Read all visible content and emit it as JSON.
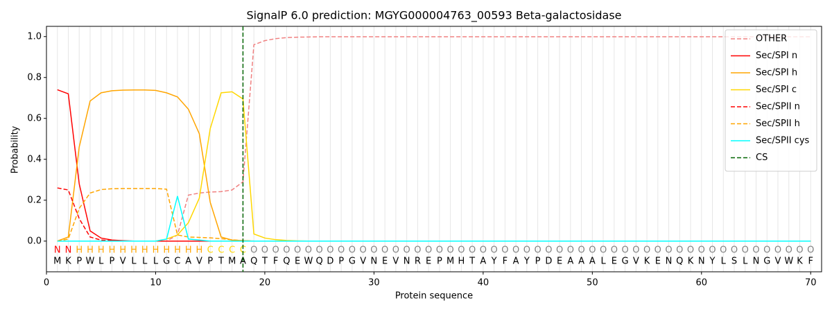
{
  "chart_data": {
    "type": "line",
    "title": "SignalP 6.0 prediction: MGYG000004763_00593 Beta-galactosidase",
    "x_label": "Protein sequence",
    "y_label": "Probability",
    "x": [
      1,
      2,
      3,
      4,
      5,
      6,
      7,
      8,
      9,
      10,
      11,
      12,
      13,
      14,
      15,
      16,
      17,
      18,
      19,
      20,
      21,
      22,
      23,
      24,
      25,
      26,
      27,
      28,
      29,
      30,
      31,
      32,
      33,
      34,
      35,
      36,
      37,
      38,
      39,
      40,
      41,
      42,
      43,
      44,
      45,
      46,
      47,
      48,
      49,
      50,
      51,
      52,
      53,
      54,
      55,
      56,
      57,
      58,
      59,
      60,
      61,
      62,
      63,
      64,
      65,
      66,
      67,
      68,
      69,
      70
    ],
    "sequence": [
      "M",
      "K",
      "P",
      "W",
      "L",
      "P",
      "V",
      "L",
      "L",
      "L",
      "G",
      "C",
      "A",
      "V",
      "P",
      "T",
      "M",
      "A",
      "Q",
      "T",
      "F",
      "Q",
      "E",
      "W",
      "Q",
      "D",
      "P",
      "G",
      "V",
      "N",
      "E",
      "V",
      "N",
      "R",
      "E",
      "P",
      "M",
      "H",
      "T",
      "A",
      "Y",
      "F",
      "A",
      "Y",
      "P",
      "D",
      "E",
      "A",
      "A",
      "A",
      "L",
      "E",
      "G",
      "V",
      "K",
      "E",
      "N",
      "Q",
      "K",
      "N",
      "Y",
      "L",
      "S",
      "L",
      "N",
      "G",
      "V",
      "W",
      "K",
      "F"
    ],
    "labels": [
      "N",
      "N",
      "H",
      "H",
      "H",
      "H",
      "H",
      "H",
      "H",
      "H",
      "H",
      "H",
      "H",
      "H",
      "C",
      "C",
      "C",
      "C",
      "O",
      "O",
      "O",
      "O",
      "O",
      "O",
      "O",
      "O",
      "O",
      "O",
      "O",
      "O",
      "O",
      "O",
      "O",
      "O",
      "O",
      "O",
      "O",
      "O",
      "O",
      "O",
      "O",
      "O",
      "O",
      "O",
      "O",
      "O",
      "O",
      "O",
      "O",
      "O",
      "O",
      "O",
      "O",
      "O",
      "O",
      "O",
      "O",
      "O",
      "O",
      "O",
      "O",
      "O",
      "O",
      "O",
      "O",
      "O",
      "O",
      "O",
      "O",
      "O"
    ],
    "label_colors": {
      "N": "red",
      "H": "orange",
      "C": "gold",
      "O": "gray"
    },
    "series": [
      {
        "name": "OTHER",
        "color": "lightcoral",
        "linestyle": "dashed",
        "values": [
          0,
          0,
          0,
          0,
          0,
          0,
          0,
          0,
          0,
          0,
          0,
          0.03,
          0.225,
          0.235,
          0.24,
          0.242,
          0.25,
          0.29,
          0.96,
          0.98,
          0.99,
          0.995,
          0.997,
          0.998,
          0.999,
          0.999,
          0.999,
          0.999,
          0.999,
          0.999,
          0.999,
          0.999,
          0.999,
          0.999,
          0.999,
          0.999,
          0.999,
          0.999,
          0.999,
          0.999,
          0.999,
          0.999,
          0.999,
          0.999,
          0.999,
          0.999,
          0.999,
          0.999,
          0.999,
          0.999,
          0.999,
          0.999,
          0.999,
          0.999,
          0.999,
          0.999,
          0.999,
          0.999,
          0.999,
          0.999,
          0.999,
          0.999,
          0.999,
          0.999,
          0.999,
          0.999,
          0.999,
          0.999,
          0.999,
          0.999
        ]
      },
      {
        "name": "Sec/SPI n",
        "color": "red",
        "linestyle": "solid",
        "values": [
          0.74,
          0.72,
          0.28,
          0.05,
          0.015,
          0.005,
          0.002,
          0,
          0,
          0,
          0,
          0,
          0,
          0,
          0,
          0,
          0,
          0,
          0,
          0,
          0,
          0,
          0,
          0,
          0,
          0,
          0,
          0,
          0,
          0,
          0,
          0,
          0,
          0,
          0,
          0,
          0,
          0,
          0,
          0,
          0,
          0,
          0,
          0,
          0,
          0,
          0,
          0,
          0,
          0,
          0,
          0,
          0,
          0,
          0,
          0,
          0,
          0,
          0,
          0,
          0,
          0,
          0,
          0,
          0,
          0,
          0,
          0,
          0,
          0
        ]
      },
      {
        "name": "Sec/SPI h",
        "color": "orange",
        "linestyle": "solid",
        "values": [
          0,
          0.02,
          0.46,
          0.685,
          0.725,
          0.735,
          0.738,
          0.739,
          0.739,
          0.737,
          0.725,
          0.705,
          0.645,
          0.525,
          0.19,
          0.02,
          0.005,
          0.002,
          0,
          0,
          0,
          0,
          0,
          0,
          0,
          0,
          0,
          0,
          0,
          0,
          0,
          0,
          0,
          0,
          0,
          0,
          0,
          0,
          0,
          0,
          0,
          0,
          0,
          0,
          0,
          0,
          0,
          0,
          0,
          0,
          0,
          0,
          0,
          0,
          0,
          0,
          0,
          0,
          0,
          0,
          0,
          0,
          0,
          0,
          0,
          0,
          0,
          0,
          0,
          0
        ]
      },
      {
        "name": "Sec/SPI c",
        "color": "gold",
        "linestyle": "solid",
        "values": [
          0,
          0,
          0,
          0,
          0,
          0,
          0,
          0,
          0,
          0,
          0.01,
          0.03,
          0.09,
          0.21,
          0.55,
          0.725,
          0.73,
          0.695,
          0.035,
          0.015,
          0.007,
          0.003,
          0.001,
          0,
          0,
          0,
          0,
          0,
          0,
          0,
          0,
          0,
          0,
          0,
          0,
          0,
          0,
          0,
          0,
          0,
          0,
          0,
          0,
          0,
          0,
          0,
          0,
          0,
          0,
          0,
          0,
          0,
          0,
          0,
          0,
          0,
          0,
          0,
          0,
          0,
          0,
          0,
          0,
          0,
          0,
          0,
          0,
          0,
          0,
          0
        ]
      },
      {
        "name": "Sec/SPII n",
        "color": "red",
        "linestyle": "dashed",
        "values": [
          0.26,
          0.25,
          0.11,
          0.02,
          0.005,
          0.002,
          0,
          0,
          0,
          0,
          0,
          0,
          0,
          0,
          0,
          0,
          0,
          0,
          0,
          0,
          0,
          0,
          0,
          0,
          0,
          0,
          0,
          0,
          0,
          0,
          0,
          0,
          0,
          0,
          0,
          0,
          0,
          0,
          0,
          0,
          0,
          0,
          0,
          0,
          0,
          0,
          0,
          0,
          0,
          0,
          0,
          0,
          0,
          0,
          0,
          0,
          0,
          0,
          0,
          0,
          0,
          0,
          0,
          0,
          0,
          0,
          0,
          0,
          0,
          0
        ]
      },
      {
        "name": "Sec/SPII h",
        "color": "orange",
        "linestyle": "dashed",
        "values": [
          0,
          0.01,
          0.16,
          0.235,
          0.252,
          0.256,
          0.257,
          0.257,
          0.257,
          0.257,
          0.254,
          0.03,
          0.02,
          0.018,
          0.016,
          0.012,
          0.006,
          0.002,
          0,
          0,
          0,
          0,
          0,
          0,
          0,
          0,
          0,
          0,
          0,
          0,
          0,
          0,
          0,
          0,
          0,
          0,
          0,
          0,
          0,
          0,
          0,
          0,
          0,
          0,
          0,
          0,
          0,
          0,
          0,
          0,
          0,
          0,
          0,
          0,
          0,
          0,
          0,
          0,
          0,
          0,
          0,
          0,
          0,
          0,
          0,
          0,
          0,
          0,
          0,
          0
        ]
      },
      {
        "name": "Sec/SPII cys",
        "color": "cyan",
        "linestyle": "solid",
        "values": [
          0,
          0,
          0,
          0,
          0,
          0,
          0,
          0,
          0,
          0,
          0.01,
          0.22,
          0.01,
          0.005,
          0,
          0,
          0,
          0,
          0,
          0,
          0,
          0,
          0,
          0,
          0,
          0,
          0,
          0,
          0,
          0,
          0,
          0,
          0,
          0,
          0,
          0,
          0,
          0,
          0,
          0,
          0,
          0,
          0,
          0,
          0,
          0,
          0,
          0,
          0,
          0,
          0,
          0,
          0,
          0,
          0,
          0,
          0,
          0,
          0,
          0,
          0,
          0,
          0,
          0,
          0,
          0,
          0,
          0,
          0,
          0
        ]
      }
    ],
    "cs": {
      "name": "CS",
      "color": "darkgreen",
      "linestyle": "dashed",
      "x": 18
    },
    "xlim": [
      0,
      71
    ],
    "ylim": [
      -0.15,
      1.05
    ],
    "xticks": [
      0,
      10,
      20,
      30,
      40,
      50,
      60,
      70
    ],
    "yticks": [
      {
        "value": 0,
        "label": "0.0"
      },
      {
        "value": 0.2,
        "label": "0.2"
      },
      {
        "value": 0.4,
        "label": "0.4"
      },
      {
        "value": 0.6,
        "label": "0.6"
      },
      {
        "value": 0.8,
        "label": "0.8"
      },
      {
        "value": 1,
        "label": "1.0"
      }
    ],
    "legend": "upper right"
  }
}
